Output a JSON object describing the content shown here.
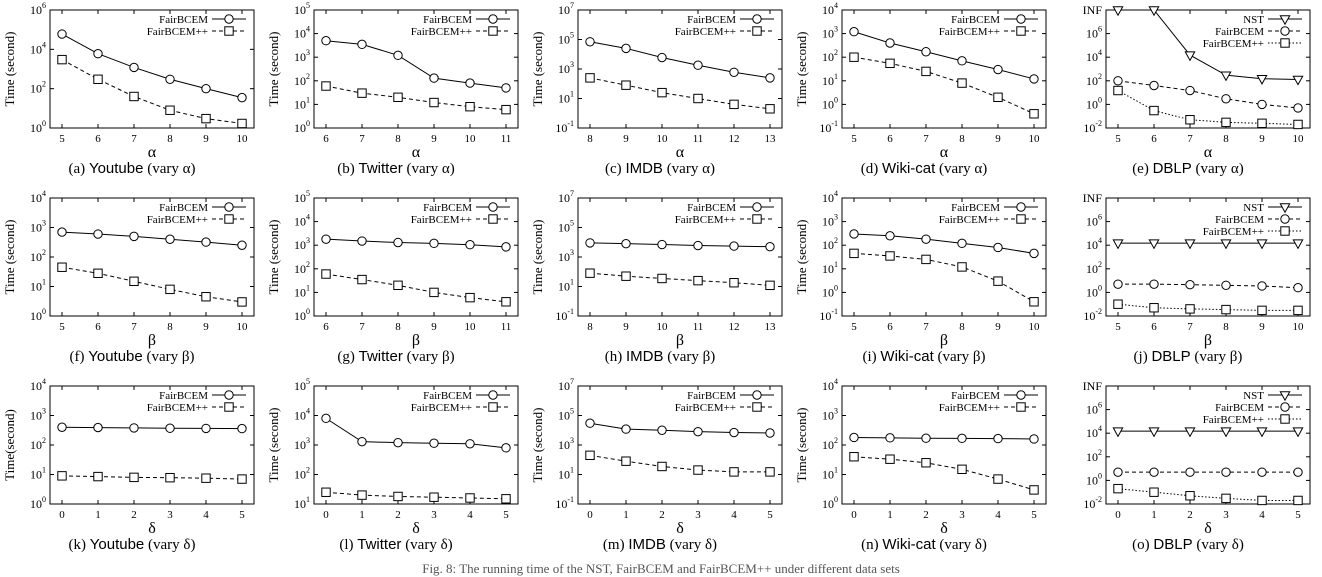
{
  "figure_caption": "Fig. 8: The running time of the NST, FairBCEM and FairBCEM++ under different data sets",
  "chart_data": [
    {
      "id": "a",
      "type": "line",
      "caption": {
        "label": "(a)",
        "dataset": "Youtube",
        "suffix": "(vary α)"
      },
      "xlabel": "α",
      "ylabel": "Time (second)",
      "x": [
        5,
        6,
        7,
        8,
        9,
        10
      ],
      "yscale": "log",
      "ylim_exp": [
        0,
        6
      ],
      "ytick_labels": [
        "10^0",
        "10^2",
        "10^4",
        "10^6"
      ],
      "legend": "top-right",
      "series": [
        {
          "name": "FairBCEM",
          "style": "circle-solid",
          "values": [
            60000,
            6000,
            1200,
            300,
            100,
            35
          ]
        },
        {
          "name": "FairBCEM++",
          "style": "square-dashed",
          "values": [
            3000,
            300,
            40,
            8,
            3,
            1.7
          ]
        }
      ]
    },
    {
      "id": "b",
      "type": "line",
      "caption": {
        "label": "(b)",
        "dataset": "Twitter",
        "suffix": "(vary α)"
      },
      "xlabel": "α",
      "ylabel": "Time (second)",
      "x": [
        6,
        7,
        8,
        9,
        10,
        11
      ],
      "yscale": "log",
      "ylim_exp": [
        0,
        5
      ],
      "ytick_labels": [
        "10^0",
        "10^1",
        "10^2",
        "10^3",
        "10^4",
        "10^5"
      ],
      "legend": "top-right",
      "series": [
        {
          "name": "FairBCEM",
          "style": "circle-solid",
          "values": [
            5000,
            3500,
            1200,
            130,
            80,
            50
          ]
        },
        {
          "name": "FairBCEM++",
          "style": "square-dashed",
          "values": [
            60,
            30,
            20,
            12,
            8,
            6
          ]
        }
      ]
    },
    {
      "id": "c",
      "type": "line",
      "caption": {
        "label": "(c)",
        "dataset": "IMDB",
        "suffix": "(vary α)"
      },
      "xlabel": "α",
      "ylabel": "Time (second)",
      "x": [
        8,
        9,
        10,
        11,
        12,
        13
      ],
      "yscale": "log",
      "ylim_exp": [
        -1,
        7
      ],
      "ytick_labels": [
        "10^-1",
        "10^1",
        "10^3",
        "10^5",
        "10^7"
      ],
      "legend": "top-right",
      "series": [
        {
          "name": "FairBCEM",
          "style": "circle-solid",
          "values": [
            70000,
            25000,
            6000,
            1800,
            600,
            250
          ]
        },
        {
          "name": "FairBCEM++",
          "style": "square-dashed",
          "values": [
            250,
            80,
            25,
            10,
            4,
            2
          ]
        }
      ]
    },
    {
      "id": "d",
      "type": "line",
      "caption": {
        "label": "(d)",
        "dataset": "Wiki-cat",
        "suffix": "(vary α)"
      },
      "xlabel": "α",
      "ylabel": "Time (second)",
      "x": [
        5,
        6,
        7,
        8,
        9,
        10
      ],
      "yscale": "log",
      "ylim_exp": [
        -1,
        4
      ],
      "ytick_labels": [
        "10^-1",
        "10^0",
        "10^1",
        "10^2",
        "10^3",
        "10^4"
      ],
      "legend": "top-right",
      "series": [
        {
          "name": "FairBCEM",
          "style": "circle-solid",
          "values": [
            1200,
            400,
            170,
            70,
            30,
            12
          ]
        },
        {
          "name": "FairBCEM++",
          "style": "square-dashed",
          "values": [
            100,
            55,
            25,
            8,
            2,
            0.4
          ]
        }
      ]
    },
    {
      "id": "e",
      "type": "line",
      "caption": {
        "label": "(e)",
        "dataset": "DBLP",
        "suffix": "(vary α)"
      },
      "xlabel": "α",
      "ylabel": "",
      "x": [
        5,
        6,
        7,
        8,
        9,
        10
      ],
      "yscale": "log",
      "ylim_exp": [
        -2,
        8
      ],
      "ytick_labels": [
        "10^-2",
        "10^0",
        "10^2",
        "10^4",
        "10^6",
        "INF"
      ],
      "legend": "top-right",
      "series": [
        {
          "name": "NST",
          "style": "triangle-solid",
          "values": [
            100000000.0,
            100000000.0,
            15000,
            300,
            150,
            130
          ]
        },
        {
          "name": "FairBCEM",
          "style": "circle-dashed",
          "values": [
            100,
            40,
            15,
            3,
            1,
            0.5
          ]
        },
        {
          "name": "FairBCEM++",
          "style": "square-dotted",
          "values": [
            15,
            0.3,
            0.05,
            0.03,
            0.025,
            0.02
          ]
        }
      ]
    },
    {
      "id": "f",
      "type": "line",
      "caption": {
        "label": "(f)",
        "dataset": "Youtube",
        "suffix": "(vary β)"
      },
      "xlabel": "β",
      "ylabel": "Time (second)",
      "x": [
        5,
        6,
        7,
        8,
        9,
        10
      ],
      "yscale": "log",
      "ylim_exp": [
        0,
        4
      ],
      "ytick_labels": [
        "10^0",
        "10^1",
        "10^2",
        "10^3",
        "10^4"
      ],
      "legend": "top-right",
      "series": [
        {
          "name": "FairBCEM",
          "style": "circle-solid",
          "values": [
            700,
            600,
            500,
            400,
            320,
            250
          ]
        },
        {
          "name": "FairBCEM++",
          "style": "square-dashed",
          "values": [
            45,
            28,
            15,
            8,
            4.5,
            3
          ]
        }
      ]
    },
    {
      "id": "g",
      "type": "line",
      "caption": {
        "label": "(g)",
        "dataset": "Twitter",
        "suffix": "(vary β)"
      },
      "xlabel": "β",
      "ylabel": "Time (second)",
      "x": [
        6,
        7,
        8,
        9,
        10,
        11
      ],
      "yscale": "log",
      "ylim_exp": [
        0,
        5
      ],
      "ytick_labels": [
        "10^0",
        "10^1",
        "10^2",
        "10^3",
        "10^4",
        "10^5"
      ],
      "legend": "top-right",
      "series": [
        {
          "name": "FairBCEM",
          "style": "circle-solid",
          "values": [
            1800,
            1500,
            1300,
            1200,
            1050,
            850
          ]
        },
        {
          "name": "FairBCEM++",
          "style": "square-dashed",
          "values": [
            60,
            35,
            20,
            10,
            6,
            4
          ]
        }
      ]
    },
    {
      "id": "h",
      "type": "line",
      "caption": {
        "label": "(h)",
        "dataset": "IMDB",
        "suffix": "(vary β)"
      },
      "xlabel": "β",
      "ylabel": "Time (second)",
      "x": [
        8,
        9,
        10,
        11,
        12,
        13
      ],
      "yscale": "log",
      "ylim_exp": [
        -1,
        7
      ],
      "ytick_labels": [
        "10^-1",
        "10^1",
        "10^3",
        "10^5",
        "10^7"
      ],
      "legend": "top-right",
      "series": [
        {
          "name": "FairBCEM",
          "style": "circle-solid",
          "values": [
            9000,
            8000,
            7000,
            6000,
            5500,
            5000
          ]
        },
        {
          "name": "FairBCEM++",
          "style": "square-dashed",
          "values": [
            80,
            50,
            35,
            25,
            18,
            12
          ]
        }
      ]
    },
    {
      "id": "i",
      "type": "line",
      "caption": {
        "label": "(i)",
        "dataset": "Wiki-cat",
        "suffix": "(vary β)"
      },
      "xlabel": "β",
      "ylabel": "Time (second)",
      "x": [
        5,
        6,
        7,
        8,
        9,
        10
      ],
      "yscale": "log",
      "ylim_exp": [
        -1,
        4
      ],
      "ytick_labels": [
        "10^-1",
        "10^0",
        "10^1",
        "10^2",
        "10^3",
        "10^4"
      ],
      "legend": "top-right",
      "series": [
        {
          "name": "FairBCEM",
          "style": "circle-solid",
          "values": [
            300,
            250,
            180,
            120,
            80,
            45
          ]
        },
        {
          "name": "FairBCEM++",
          "style": "square-dashed",
          "values": [
            45,
            35,
            25,
            12,
            3,
            0.4
          ]
        }
      ]
    },
    {
      "id": "j",
      "type": "line",
      "caption": {
        "label": "(j)",
        "dataset": "DBLP",
        "suffix": "(vary β)"
      },
      "xlabel": "β",
      "ylabel": "",
      "x": [
        5,
        6,
        7,
        8,
        9,
        10
      ],
      "yscale": "log",
      "ylim_exp": [
        -2,
        8
      ],
      "ytick_labels": [
        "10^-2",
        "10^0",
        "10^2",
        "10^4",
        "10^6",
        "INF"
      ],
      "legend": "top-right",
      "series": [
        {
          "name": "NST",
          "style": "triangle-solid",
          "values": [
            15000,
            15000,
            15000,
            15000,
            15000,
            15000
          ]
        },
        {
          "name": "FairBCEM",
          "style": "circle-dashed",
          "values": [
            5,
            5,
            4.5,
            4,
            3.5,
            2.5
          ]
        },
        {
          "name": "FairBCEM++",
          "style": "square-dotted",
          "values": [
            0.1,
            0.05,
            0.04,
            0.035,
            0.03,
            0.03
          ]
        }
      ]
    },
    {
      "id": "k",
      "type": "line",
      "caption": {
        "label": "(k)",
        "dataset": "Youtube",
        "suffix": "(vary δ)"
      },
      "xlabel": "δ",
      "ylabel": "Time(second)",
      "x": [
        0,
        1,
        2,
        3,
        4,
        5
      ],
      "yscale": "log",
      "ylim_exp": [
        0,
        4
      ],
      "ytick_labels": [
        "10^0",
        "10^1",
        "10^2",
        "10^3",
        "10^4"
      ],
      "legend": "top-right",
      "series": [
        {
          "name": "FairBCEM",
          "style": "circle-solid",
          "values": [
            400,
            390,
            380,
            370,
            365,
            360
          ]
        },
        {
          "name": "FairBCEM++",
          "style": "square-dashed",
          "values": [
            9,
            8.5,
            8,
            7.8,
            7.5,
            7
          ]
        }
      ]
    },
    {
      "id": "l",
      "type": "line",
      "caption": {
        "label": "(l)",
        "dataset": "Twitter",
        "suffix": "(vary δ)"
      },
      "xlabel": "δ",
      "ylabel": "Time (second)",
      "x": [
        0,
        1,
        2,
        3,
        4,
        5
      ],
      "yscale": "log",
      "ylim_exp": [
        1,
        5
      ],
      "ytick_labels": [
        "10^1",
        "10^2",
        "10^3",
        "10^4",
        "10^5"
      ],
      "legend": "top-right",
      "series": [
        {
          "name": "FairBCEM",
          "style": "circle-solid",
          "values": [
            8000,
            1300,
            1200,
            1150,
            1100,
            800
          ]
        },
        {
          "name": "FairBCEM++",
          "style": "square-dashed",
          "values": [
            25,
            20,
            18,
            17,
            16,
            15
          ]
        }
      ]
    },
    {
      "id": "m",
      "type": "line",
      "caption": {
        "label": "(m)",
        "dataset": "IMDB",
        "suffix": "(vary δ)"
      },
      "xlabel": "δ",
      "ylabel": "Time (second)",
      "x": [
        0,
        1,
        2,
        3,
        4,
        5
      ],
      "yscale": "log",
      "ylim_exp": [
        -1,
        7
      ],
      "ytick_labels": [
        "10^-1",
        "10^1",
        "10^3",
        "10^5",
        "10^7"
      ],
      "legend": "top-right",
      "series": [
        {
          "name": "FairBCEM",
          "style": "circle-solid",
          "values": [
            30000,
            12000,
            10000,
            8000,
            7000,
            6500
          ]
        },
        {
          "name": "FairBCEM++",
          "style": "square-dashed",
          "values": [
            200,
            80,
            35,
            20,
            15,
            15
          ]
        }
      ]
    },
    {
      "id": "n",
      "type": "line",
      "caption": {
        "label": "(n)",
        "dataset": "Wiki-cat",
        "suffix": "(vary δ)"
      },
      "xlabel": "δ",
      "ylabel": "Time (second)",
      "x": [
        0,
        1,
        2,
        3,
        4,
        5
      ],
      "yscale": "log",
      "ylim_exp": [
        0,
        4
      ],
      "ytick_labels": [
        "10^0",
        "10^1",
        "10^2",
        "10^3",
        "10^4"
      ],
      "legend": "top-right",
      "series": [
        {
          "name": "FairBCEM",
          "style": "circle-solid",
          "values": [
            180,
            175,
            170,
            168,
            165,
            160
          ]
        },
        {
          "name": "FairBCEM++",
          "style": "square-dashed",
          "values": [
            40,
            33,
            25,
            15,
            7,
            3
          ]
        }
      ]
    },
    {
      "id": "o",
      "type": "line",
      "caption": {
        "label": "(o)",
        "dataset": "DBLP",
        "suffix": "(vary δ)"
      },
      "xlabel": "δ",
      "ylabel": "",
      "x": [
        0,
        1,
        2,
        3,
        4,
        5
      ],
      "yscale": "log",
      "ylim_exp": [
        -2,
        8
      ],
      "ytick_labels": [
        "10^-2",
        "10^0",
        "10^2",
        "10^4",
        "10^6",
        "INF"
      ],
      "legend": "top-right",
      "series": [
        {
          "name": "NST",
          "style": "triangle-solid",
          "values": [
            15000,
            15000,
            15000,
            15000,
            15000,
            15000
          ]
        },
        {
          "name": "FairBCEM",
          "style": "circle-dashed",
          "values": [
            5,
            5,
            5,
            5,
            5,
            5
          ]
        },
        {
          "name": "FairBCEM++",
          "style": "square-dotted",
          "values": [
            0.2,
            0.1,
            0.05,
            0.03,
            0.02,
            0.02
          ]
        }
      ]
    }
  ]
}
